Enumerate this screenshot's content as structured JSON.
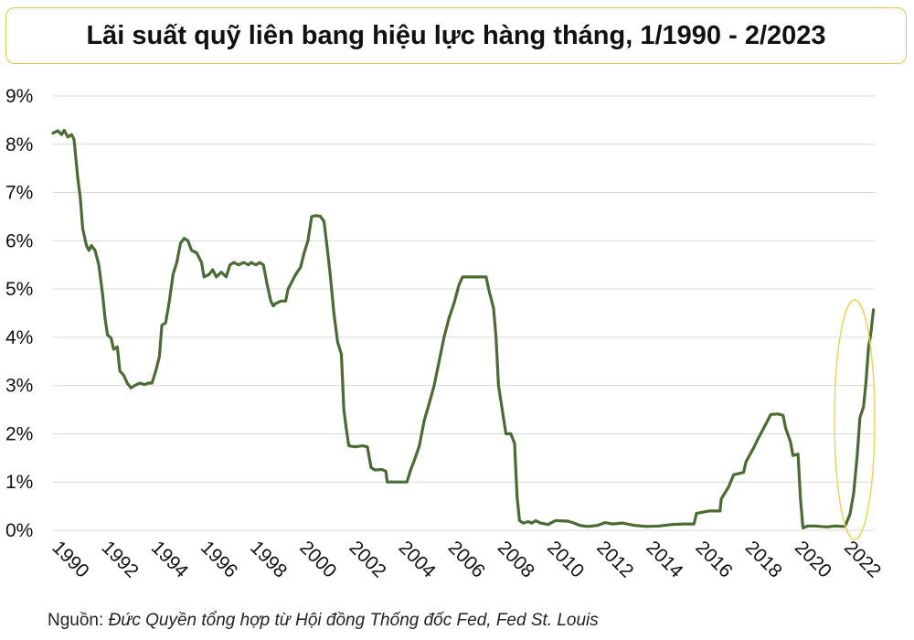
{
  "title": "Lãi suất quỹ liên bang hiệu lực hàng tháng, 1/1990 - 2/2023",
  "source": {
    "label": "Nguồn:",
    "text": "Đức Quyền tổng hợp từ Hội đồng Thống đốc Fed, Fed St. Louis"
  },
  "colors": {
    "line": "#4a6b32",
    "grid": "#d9d9d9",
    "highlight": "#f0d24a",
    "title_border": "#e8c84a"
  },
  "chart_data": {
    "type": "line",
    "title": "Lãi suất quỹ liên bang hiệu lực hàng tháng, 1/1990 - 2/2023",
    "xlabel": "",
    "ylabel": "",
    "xlim": [
      1990,
      2023.2
    ],
    "ylim": [
      0,
      9
    ],
    "yticks": [
      "0%",
      "1%",
      "2%",
      "3%",
      "4%",
      "5%",
      "6%",
      "7%",
      "8%",
      "9%"
    ],
    "xticks": [
      "1990",
      "1992",
      "1994",
      "1996",
      "1998",
      "2000",
      "2002",
      "2004",
      "2006",
      "2008",
      "2010",
      "2012",
      "2014",
      "2016",
      "2018",
      "2020",
      "2022"
    ],
    "grid": true,
    "legend": "none",
    "annotation": "ellipse highlighting 2022-2023 rise",
    "series": [
      {
        "points": [
          [
            1990.0,
            8.23
          ],
          [
            1990.2,
            8.28
          ],
          [
            1990.35,
            8.2
          ],
          [
            1990.45,
            8.29
          ],
          [
            1990.6,
            8.15
          ],
          [
            1990.75,
            8.2
          ],
          [
            1990.85,
            8.1
          ],
          [
            1991.0,
            7.3
          ],
          [
            1991.1,
            6.9
          ],
          [
            1991.2,
            6.25
          ],
          [
            1991.35,
            5.9
          ],
          [
            1991.45,
            5.8
          ],
          [
            1991.55,
            5.9
          ],
          [
            1991.7,
            5.8
          ],
          [
            1991.85,
            5.5
          ],
          [
            1992.0,
            4.9
          ],
          [
            1992.1,
            4.4
          ],
          [
            1992.2,
            4.05
          ],
          [
            1992.35,
            3.98
          ],
          [
            1992.45,
            3.75
          ],
          [
            1992.6,
            3.8
          ],
          [
            1992.7,
            3.3
          ],
          [
            1992.85,
            3.22
          ],
          [
            1993.0,
            3.05
          ],
          [
            1993.15,
            2.95
          ],
          [
            1993.3,
            3.0
          ],
          [
            1993.5,
            3.05
          ],
          [
            1993.7,
            3.02
          ],
          [
            1993.85,
            3.05
          ],
          [
            1994.0,
            3.05
          ],
          [
            1994.15,
            3.3
          ],
          [
            1994.3,
            3.6
          ],
          [
            1994.4,
            4.25
          ],
          [
            1994.55,
            4.3
          ],
          [
            1994.7,
            4.75
          ],
          [
            1994.85,
            5.3
          ],
          [
            1995.0,
            5.55
          ],
          [
            1995.15,
            5.95
          ],
          [
            1995.3,
            6.05
          ],
          [
            1995.45,
            6.0
          ],
          [
            1995.6,
            5.8
          ],
          [
            1995.8,
            5.75
          ],
          [
            1996.0,
            5.55
          ],
          [
            1996.1,
            5.25
          ],
          [
            1996.3,
            5.3
          ],
          [
            1996.45,
            5.4
          ],
          [
            1996.6,
            5.25
          ],
          [
            1996.8,
            5.35
          ],
          [
            1997.0,
            5.25
          ],
          [
            1997.15,
            5.5
          ],
          [
            1997.3,
            5.55
          ],
          [
            1997.5,
            5.5
          ],
          [
            1997.7,
            5.55
          ],
          [
            1997.9,
            5.5
          ],
          [
            1998.0,
            5.55
          ],
          [
            1998.2,
            5.5
          ],
          [
            1998.35,
            5.55
          ],
          [
            1998.5,
            5.5
          ],
          [
            1998.65,
            5.1
          ],
          [
            1998.8,
            4.75
          ],
          [
            1998.9,
            4.65
          ],
          [
            1999.0,
            4.7
          ],
          [
            1999.2,
            4.75
          ],
          [
            1999.4,
            4.75
          ],
          [
            1999.5,
            5.0
          ],
          [
            1999.7,
            5.2
          ],
          [
            1999.8,
            5.3
          ],
          [
            2000.0,
            5.45
          ],
          [
            2000.15,
            5.75
          ],
          [
            2000.3,
            6.0
          ],
          [
            2000.45,
            6.5
          ],
          [
            2000.6,
            6.52
          ],
          [
            2000.8,
            6.51
          ],
          [
            2000.95,
            6.4
          ],
          [
            2001.05,
            5.98
          ],
          [
            2001.2,
            5.3
          ],
          [
            2001.35,
            4.5
          ],
          [
            2001.5,
            3.9
          ],
          [
            2001.65,
            3.65
          ],
          [
            2001.75,
            2.5
          ],
          [
            2001.85,
            2.1
          ],
          [
            2001.95,
            1.75
          ],
          [
            2002.2,
            1.73
          ],
          [
            2002.5,
            1.75
          ],
          [
            2002.7,
            1.73
          ],
          [
            2002.85,
            1.3
          ],
          [
            2003.0,
            1.25
          ],
          [
            2003.3,
            1.26
          ],
          [
            2003.45,
            1.22
          ],
          [
            2003.5,
            1.0
          ],
          [
            2003.8,
            1.0
          ],
          [
            2004.0,
            1.0
          ],
          [
            2004.3,
            1.0
          ],
          [
            2004.45,
            1.25
          ],
          [
            2004.6,
            1.45
          ],
          [
            2004.8,
            1.75
          ],
          [
            2005.0,
            2.28
          ],
          [
            2005.2,
            2.63
          ],
          [
            2005.4,
            3.0
          ],
          [
            2005.6,
            3.5
          ],
          [
            2005.8,
            4.0
          ],
          [
            2006.0,
            4.4
          ],
          [
            2006.2,
            4.7
          ],
          [
            2006.4,
            5.08
          ],
          [
            2006.55,
            5.25
          ],
          [
            2006.8,
            5.25
          ],
          [
            2007.0,
            5.25
          ],
          [
            2007.3,
            5.25
          ],
          [
            2007.5,
            5.25
          ],
          [
            2007.6,
            5.0
          ],
          [
            2007.8,
            4.6
          ],
          [
            2007.9,
            4.0
          ],
          [
            2008.0,
            3.0
          ],
          [
            2008.15,
            2.5
          ],
          [
            2008.3,
            2.0
          ],
          [
            2008.5,
            2.0
          ],
          [
            2008.65,
            1.8
          ],
          [
            2008.75,
            0.7
          ],
          [
            2008.85,
            0.2
          ],
          [
            2009.0,
            0.15
          ],
          [
            2009.2,
            0.18
          ],
          [
            2009.35,
            0.15
          ],
          [
            2009.5,
            0.2
          ],
          [
            2009.7,
            0.15
          ],
          [
            2010.0,
            0.12
          ],
          [
            2010.3,
            0.2
          ],
          [
            2010.8,
            0.19
          ],
          [
            2011.0,
            0.16
          ],
          [
            2011.3,
            0.1
          ],
          [
            2011.6,
            0.08
          ],
          [
            2012.0,
            0.1
          ],
          [
            2012.3,
            0.16
          ],
          [
            2012.6,
            0.13
          ],
          [
            2013.0,
            0.15
          ],
          [
            2013.5,
            0.1
          ],
          [
            2014.0,
            0.08
          ],
          [
            2014.5,
            0.09
          ],
          [
            2015.0,
            0.12
          ],
          [
            2015.5,
            0.13
          ],
          [
            2015.9,
            0.13
          ],
          [
            2016.0,
            0.35
          ],
          [
            2016.5,
            0.4
          ],
          [
            2016.95,
            0.4
          ],
          [
            2017.0,
            0.65
          ],
          [
            2017.3,
            0.9
          ],
          [
            2017.5,
            1.15
          ],
          [
            2017.9,
            1.2
          ],
          [
            2018.0,
            1.42
          ],
          [
            2018.3,
            1.7
          ],
          [
            2018.5,
            1.91
          ],
          [
            2018.8,
            2.2
          ],
          [
            2019.0,
            2.4
          ],
          [
            2019.3,
            2.41
          ],
          [
            2019.5,
            2.38
          ],
          [
            2019.6,
            2.12
          ],
          [
            2019.8,
            1.83
          ],
          [
            2019.9,
            1.55
          ],
          [
            2020.1,
            1.58
          ],
          [
            2020.2,
            0.65
          ],
          [
            2020.3,
            0.05
          ],
          [
            2020.5,
            0.09
          ],
          [
            2020.8,
            0.09
          ],
          [
            2021.0,
            0.08
          ],
          [
            2021.3,
            0.07
          ],
          [
            2021.6,
            0.09
          ],
          [
            2021.9,
            0.08
          ],
          [
            2022.0,
            0.08
          ],
          [
            2022.2,
            0.33
          ],
          [
            2022.35,
            0.77
          ],
          [
            2022.5,
            1.58
          ],
          [
            2022.6,
            2.33
          ],
          [
            2022.75,
            2.56
          ],
          [
            2022.85,
            3.08
          ],
          [
            2022.95,
            3.78
          ],
          [
            2023.05,
            4.1
          ],
          [
            2023.15,
            4.57
          ]
        ]
      }
    ]
  }
}
